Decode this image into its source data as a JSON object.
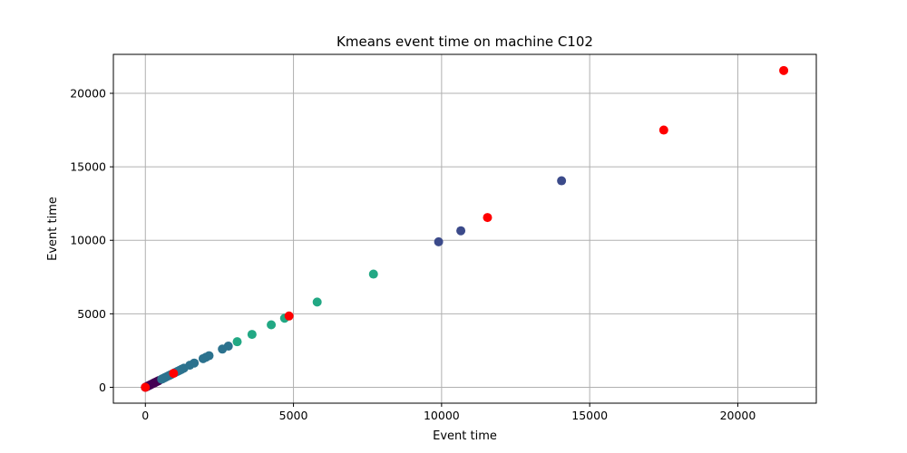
{
  "chart_data": {
    "type": "scatter",
    "title": "Kmeans event time on machine C102",
    "xlabel": "Event time",
    "ylabel": "Event time",
    "xlim": [
      -1080,
      22650
    ],
    "ylim": [
      -1080,
      22650
    ],
    "xticks": [
      0,
      5000,
      10000,
      15000,
      20000
    ],
    "yticks": [
      0,
      5000,
      10000,
      15000,
      20000
    ],
    "grid": true,
    "clusters": [
      {
        "color": "#440154",
        "points": [
          [
            0,
            0
          ],
          [
            40,
            40
          ],
          [
            80,
            80
          ],
          [
            120,
            120
          ],
          [
            160,
            160
          ],
          [
            200,
            200
          ],
          [
            240,
            240
          ],
          [
            280,
            280
          ],
          [
            320,
            320
          ],
          [
            360,
            360
          ],
          [
            400,
            400
          ],
          [
            450,
            450
          ]
        ]
      },
      {
        "color": "#2c728e",
        "points": [
          [
            550,
            550
          ],
          [
            600,
            600
          ],
          [
            650,
            650
          ],
          [
            700,
            700
          ],
          [
            760,
            760
          ],
          [
            820,
            820
          ],
          [
            880,
            880
          ],
          [
            1000,
            1000
          ],
          [
            1080,
            1080
          ],
          [
            1150,
            1150
          ],
          [
            1220,
            1220
          ],
          [
            1300,
            1300
          ],
          [
            1500,
            1500
          ],
          [
            1650,
            1650
          ],
          [
            1950,
            1950
          ],
          [
            2050,
            2050
          ],
          [
            2150,
            2150
          ],
          [
            2600,
            2600
          ],
          [
            2800,
            2800
          ]
        ]
      },
      {
        "color": "#22a884",
        "points": [
          [
            3100,
            3100
          ],
          [
            3600,
            3600
          ],
          [
            4250,
            4250
          ],
          [
            4700,
            4700
          ],
          [
            5800,
            5800
          ],
          [
            7700,
            7700
          ]
        ]
      },
      {
        "color": "#3b4a8a",
        "points": [
          [
            9900,
            9900
          ],
          [
            10650,
            10650
          ],
          [
            14050,
            14050
          ]
        ]
      },
      {
        "color": "#ff0000",
        "points": [
          [
            0,
            0
          ],
          [
            950,
            950
          ],
          [
            4850,
            4850
          ],
          [
            11550,
            11550
          ],
          [
            17500,
            17500
          ],
          [
            21550,
            21550
          ]
        ]
      }
    ]
  }
}
